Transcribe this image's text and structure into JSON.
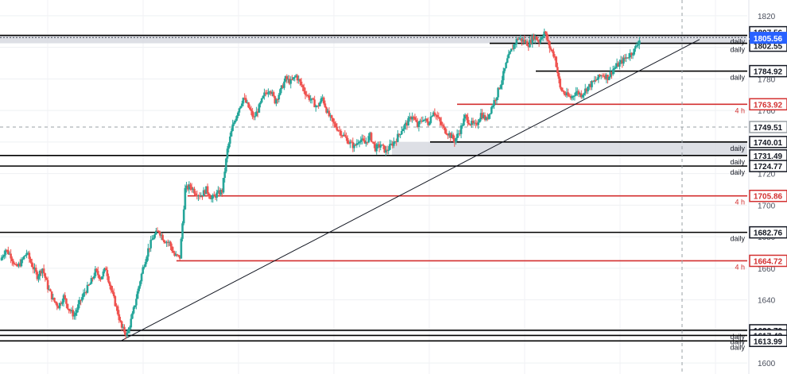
{
  "chart_data": {
    "type": "candlestick",
    "title": "",
    "xlabel": "",
    "ylabel": "",
    "ylim": [
      1593,
      1830
    ],
    "y_ticks": [
      1600,
      1620,
      1640,
      1660,
      1680,
      1700,
      1720,
      1740,
      1760,
      1780,
      1800,
      1820
    ],
    "grid": true,
    "colors": {
      "up": "#26a69a",
      "down": "#ef5350",
      "daily_level": "#000000",
      "h4_level": "#d32f2f",
      "zone": "#d1d4dc",
      "current_price": "#2962ff"
    },
    "current_price": {
      "value": 1805.56,
      "label": "1805.56"
    },
    "levels": [
      {
        "value": 1807.56,
        "label": "1807.56",
        "timeframe": "daily",
        "color": "#000000"
      },
      {
        "value": 1802.55,
        "label": "1802.55",
        "timeframe": "daily",
        "color": "#000000"
      },
      {
        "value": 1784.92,
        "label": "1784.92",
        "timeframe": "daily",
        "color": "#000000"
      },
      {
        "value": 1763.92,
        "label": "1763.92",
        "timeframe": "4 h",
        "color": "#d32f2f"
      },
      {
        "value": 1749.51,
        "label": "1749.51",
        "timeframe": "",
        "color": "#9e9e9e"
      },
      {
        "value": 1740.01,
        "label": "1740.01",
        "timeframe": "daily",
        "color": "#000000"
      },
      {
        "value": 1731.49,
        "label": "1731.49",
        "timeframe": "daily",
        "color": "#000000"
      },
      {
        "value": 1724.77,
        "label": "1724.77",
        "timeframe": "daily",
        "color": "#000000"
      },
      {
        "value": 1705.86,
        "label": "1705.86",
        "timeframe": "4 h",
        "color": "#d32f2f"
      },
      {
        "value": 1682.76,
        "label": "1682.76",
        "timeframe": "daily",
        "color": "#000000"
      },
      {
        "value": 1664.72,
        "label": "1664.72",
        "timeframe": "4 h",
        "color": "#d32f2f"
      },
      {
        "value": 1620.7,
        "label": "1620.70",
        "timeframe": "daily",
        "color": "#000000"
      },
      {
        "value": 1617.43,
        "label": "1617.43",
        "timeframe": "daily",
        "color": "#000000"
      },
      {
        "value": 1613.99,
        "label": "1613.99",
        "timeframe": "daily",
        "color": "#000000"
      }
    ],
    "zones": [
      {
        "low": 1802.55,
        "high": 1807.56
      },
      {
        "low": 1731.49,
        "high": 1740.01
      }
    ],
    "trendline": {
      "from": 1613.99,
      "to": 1805
    },
    "price_path": [
      1665,
      1672,
      1668,
      1660,
      1664,
      1670,
      1662,
      1655,
      1660,
      1648,
      1640,
      1636,
      1642,
      1634,
      1630,
      1638,
      1645,
      1650,
      1658,
      1654,
      1660,
      1646,
      1635,
      1622,
      1618,
      1630,
      1645,
      1660,
      1672,
      1680,
      1684,
      1678,
      1676,
      1668,
      1667,
      1710,
      1712,
      1708,
      1706,
      1710,
      1704,
      1707,
      1709,
      1735,
      1750,
      1760,
      1768,
      1762,
      1755,
      1762,
      1770,
      1774,
      1766,
      1772,
      1780,
      1778,
      1782,
      1776,
      1770,
      1766,
      1762,
      1768,
      1758,
      1752,
      1748,
      1744,
      1740,
      1737,
      1742,
      1739,
      1744,
      1736,
      1738,
      1734,
      1738,
      1742,
      1748,
      1752,
      1757,
      1750,
      1755,
      1752,
      1760,
      1754,
      1748,
      1745,
      1741,
      1747,
      1756,
      1752,
      1750,
      1758,
      1754,
      1762,
      1770,
      1780,
      1792,
      1800,
      1806,
      1804,
      1802,
      1807,
      1804,
      1810,
      1800,
      1794,
      1774,
      1770,
      1768,
      1772,
      1770,
      1774,
      1777,
      1780,
      1783,
      1781,
      1786,
      1789,
      1792,
      1795,
      1798,
      1805
    ]
  }
}
